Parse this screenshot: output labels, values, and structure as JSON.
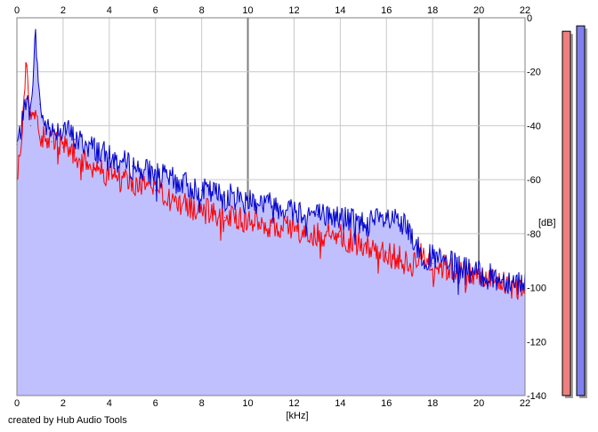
{
  "chart_data": {
    "type": "area",
    "xlabel": "[kHz]",
    "ylabel": "[dB]",
    "xlim": [
      0,
      22
    ],
    "ylim": [
      -140,
      0
    ],
    "x_ticks": [
      0,
      2,
      4,
      6,
      8,
      10,
      12,
      14,
      16,
      18,
      20,
      22
    ],
    "y_ticks": [
      0,
      -20,
      -40,
      -60,
      -80,
      -100,
      -120,
      -140
    ],
    "x_tick_labels": [
      "0",
      "2",
      "4",
      "6",
      "8",
      "10",
      "12",
      "14",
      "16",
      "18",
      "20",
      "22"
    ],
    "y_tick_labels": [
      "0",
      "-20",
      "-40",
      "-60",
      "-80",
      "-100",
      "-120",
      "-140"
    ],
    "grid": true,
    "x_axis_labels_top_and_bottom": true,
    "series": [
      {
        "color": "#0000cc",
        "fill": "#c0c0ff",
        "x": [
          0,
          0.2,
          0.4,
          0.6,
          0.8,
          1.0,
          1.2,
          1.5,
          2.0,
          2.5,
          3,
          3.5,
          4,
          5,
          6,
          7,
          8,
          9,
          10,
          11,
          12,
          13,
          14,
          15,
          16,
          16.5,
          17,
          17.5,
          18,
          19,
          20,
          21,
          22
        ],
        "values": [
          -47,
          -40,
          -30,
          -36,
          -6,
          -32,
          -40,
          -42,
          -40,
          -45,
          -47,
          -49,
          -52,
          -55,
          -58,
          -61,
          -64,
          -66,
          -67,
          -69,
          -71,
          -73,
          -74,
          -76,
          -75,
          -76,
          -79,
          -88,
          -89,
          -92,
          -95,
          -97,
          -98
        ]
      },
      {
        "color": "#ff0000",
        "x": [
          0,
          0.2,
          0.4,
          0.6,
          0.8,
          1.0,
          1.2,
          1.5,
          2.0,
          2.5,
          3,
          3.5,
          4,
          5,
          6,
          7,
          8,
          9,
          10,
          11,
          12,
          13,
          14,
          15,
          16,
          16.5,
          17,
          17.5,
          18,
          19,
          20,
          21,
          22
        ],
        "values": [
          -60,
          -45,
          -18,
          -40,
          -35,
          -45,
          -44,
          -46,
          -48,
          -50,
          -54,
          -56,
          -58,
          -62,
          -64,
          -69,
          -71,
          -74,
          -75,
          -77,
          -79,
          -80,
          -81,
          -84,
          -87,
          -89,
          -92,
          -88,
          -91,
          -94,
          -96,
          -98,
          -101
        ]
      }
    ],
    "level_meters": [
      {
        "color": "#f08080",
        "level_db": -5
      },
      {
        "color": "#8080f0",
        "level_db": -3
      }
    ]
  },
  "footer": {
    "credit": "created by Hub Audio Tools"
  }
}
